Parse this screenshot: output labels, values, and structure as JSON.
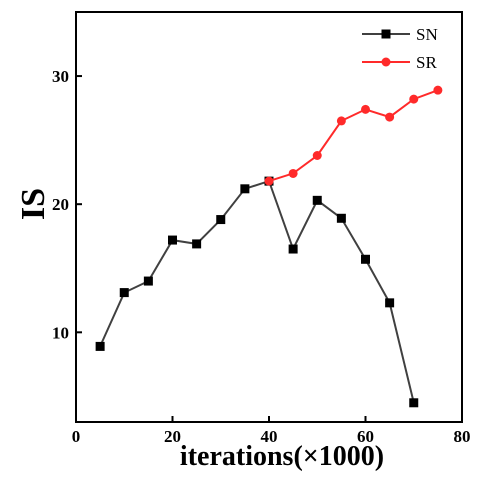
{
  "chart_data": {
    "type": "line",
    "xlabel": "iterations(×1000)",
    "ylabel": "IS",
    "xlim": [
      0,
      80
    ],
    "ylim": [
      3,
      35
    ],
    "xticks": [
      0,
      20,
      40,
      60,
      80
    ],
    "yticks": [
      10,
      20,
      30
    ],
    "grid": false,
    "legend_position": "top-right",
    "series": [
      {
        "name": "SN",
        "color": "#404040",
        "marker": "square",
        "x": [
          5,
          10,
          15,
          20,
          25,
          30,
          35,
          40,
          45,
          50,
          55,
          60,
          65,
          70
        ],
        "y": [
          8.9,
          13.1,
          14.0,
          17.2,
          16.9,
          18.8,
          21.2,
          21.8,
          16.5,
          20.3,
          18.9,
          15.7,
          12.3,
          4.5
        ]
      },
      {
        "name": "SR",
        "color": "#ff2a2a",
        "marker": "circle",
        "x": [
          40,
          45,
          50,
          55,
          60,
          65,
          70,
          75
        ],
        "y": [
          21.8,
          22.4,
          23.8,
          26.5,
          27.4,
          26.8,
          28.2,
          28.9
        ]
      }
    ]
  }
}
